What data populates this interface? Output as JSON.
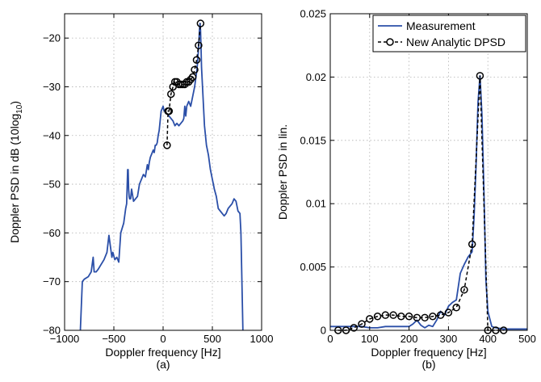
{
  "chart_data": [
    {
      "type": "line",
      "panel_label": "(a)",
      "xlabel": "Doppler frequency [Hz]",
      "ylabel_main": "Doppler PSD in dB (10log",
      "ylabel_sub": "10",
      "ylabel_tail": ")",
      "xlim": [
        -1000,
        1000
      ],
      "ylim": [
        -80,
        -15
      ],
      "x_ticks": [
        -1000,
        -500,
        0,
        500,
        1000
      ],
      "y_ticks": [
        -80,
        -70,
        -60,
        -50,
        -40,
        -30,
        -20
      ],
      "x_tick_labels": [
        "−1000",
        "−500",
        "0",
        "500",
        "1000"
      ],
      "y_tick_labels": [
        "−80",
        "−70",
        "−60",
        "−50",
        "−40",
        "−30",
        "−20"
      ],
      "grid": true,
      "series": [
        {
          "key": "measurement",
          "color": "#2b4fa8",
          "style": "solid",
          "x": [
            -840,
            -820,
            -800,
            -760,
            -730,
            -710,
            -700,
            -680,
            -660,
            -630,
            -600,
            -570,
            -550,
            -530,
            -520,
            -510,
            -490,
            -470,
            -450,
            -430,
            -400,
            -380,
            -370,
            -360,
            -355,
            -350,
            -345,
            -340,
            -330,
            -320,
            -300,
            -280,
            -260,
            -240,
            -220,
            -200,
            -180,
            -160,
            -150,
            -140,
            -130,
            -120,
            -110,
            -100,
            -90,
            -80,
            -70,
            -60,
            -50,
            -40,
            -30,
            -20,
            -10,
            0,
            10,
            20,
            30,
            40,
            60,
            80,
            100,
            120,
            140,
            160,
            180,
            200,
            210,
            220,
            230,
            240,
            260,
            280,
            300,
            320,
            340,
            350,
            360,
            365,
            370,
            375,
            380,
            385,
            390,
            400,
            420,
            440,
            460,
            480,
            500,
            520,
            540,
            560,
            580,
            600,
            620,
            640,
            660,
            680,
            700,
            720,
            740,
            760,
            780,
            790,
            800,
            810
          ],
          "y": [
            -80,
            -70,
            -69.5,
            -69,
            -68,
            -65,
            -68,
            -68,
            -67.5,
            -66.5,
            -65.5,
            -64,
            -60.5,
            -63.5,
            -65,
            -64,
            -65.5,
            -65,
            -66,
            -60,
            -58,
            -55,
            -54,
            -47,
            -47,
            -51,
            -52.5,
            -53,
            -53,
            -51,
            -53.5,
            -53,
            -52.5,
            -50,
            -49,
            -48,
            -48.5,
            -46,
            -47,
            -45.5,
            -44.5,
            -44,
            -43.5,
            -43,
            -43.5,
            -42,
            -42,
            -41.5,
            -40,
            -39,
            -37,
            -35,
            -34.5,
            -34,
            -35,
            -35,
            -35.5,
            -35.5,
            -36,
            -36.5,
            -37,
            -38,
            -37.5,
            -38,
            -37.5,
            -37,
            -36.5,
            -34,
            -36,
            -34,
            -33,
            -34,
            -32,
            -30,
            -27,
            -25,
            -22,
            -20,
            -18,
            -17,
            -18.5,
            -22,
            -26,
            -30,
            -38,
            -42,
            -44,
            -47,
            -49,
            -51,
            -52.5,
            -55,
            -55.5,
            -56,
            -56.5,
            -56,
            -55,
            -54.5,
            -54,
            -53,
            -53.5,
            -55.5,
            -56,
            -60,
            -70,
            -80
          ]
        },
        {
          "key": "analytic",
          "color": "#000000",
          "style": "dashed-circle",
          "x": [
            40,
            50,
            60,
            80,
            100,
            120,
            140,
            160,
            180,
            200,
            220,
            240,
            260,
            280,
            300,
            320,
            340,
            360,
            380
          ],
          "y": [
            -42,
            -35,
            -35,
            -31.5,
            -30,
            -29,
            -29,
            -29.5,
            -29.5,
            -29.5,
            -29.5,
            -29,
            -29,
            -28.5,
            -28,
            -26.5,
            -24.5,
            -21.5,
            -17
          ]
        }
      ]
    },
    {
      "type": "line",
      "panel_label": "(b)",
      "xlabel": "Doppler frequency [Hz]",
      "ylabel": "Doppler PSD in lin.",
      "xlim": [
        0,
        500
      ],
      "ylim": [
        0,
        0.025
      ],
      "x_ticks": [
        0,
        100,
        200,
        300,
        400,
        500
      ],
      "y_ticks": [
        0,
        0.005,
        0.01,
        0.015,
        0.02,
        0.025
      ],
      "x_tick_labels": [
        "0",
        "100",
        "200",
        "300",
        "400",
        "500"
      ],
      "y_tick_labels": [
        "0",
        "0.005",
        "0.01",
        "0.015",
        "0.02",
        "0.025"
      ],
      "grid": true,
      "legend_position": "top-right",
      "series": [
        {
          "key": "measurement",
          "name": "Measurement",
          "color": "#2b4fa8",
          "style": "solid",
          "x": [
            0,
            20,
            40,
            60,
            80,
            100,
            120,
            140,
            160,
            180,
            200,
            210,
            220,
            230,
            240,
            250,
            260,
            270,
            280,
            290,
            300,
            310,
            320,
            330,
            340,
            350,
            360,
            365,
            370,
            375,
            380,
            385,
            390,
            395,
            400,
            410,
            420,
            440,
            460,
            480,
            500
          ],
          "y": [
            0.0003,
            0.0003,
            0.0003,
            0.0003,
            0.0003,
            0.0002,
            0.0002,
            0.0003,
            0.0003,
            0.0003,
            0.0003,
            0.0005,
            0.0008,
            0.0004,
            0.0002,
            0.0004,
            0.0003,
            0.0008,
            0.0015,
            0.0012,
            0.0019,
            0.0022,
            0.0024,
            0.0045,
            0.0052,
            0.0058,
            0.0062,
            0.009,
            0.013,
            0.018,
            0.0201,
            0.017,
            0.011,
            0.004,
            0.0015,
            0.0003,
            0.0002,
            0.0001,
            0.0001,
            0.0001,
            0.0001
          ]
        },
        {
          "key": "analytic",
          "name": "New Analytic DPSD",
          "color": "#000000",
          "style": "dashed-circle",
          "x": [
            20,
            40,
            60,
            80,
            100,
            120,
            140,
            160,
            180,
            200,
            220,
            240,
            260,
            280,
            300,
            320,
            340,
            360,
            380,
            400,
            420,
            440
          ],
          "y": [
            0.0,
            0.0,
            0.0002,
            0.0005,
            0.0009,
            0.0011,
            0.0012,
            0.0012,
            0.0011,
            0.0011,
            0.001,
            0.001,
            0.0011,
            0.0012,
            0.0014,
            0.0018,
            0.0032,
            0.0068,
            0.0201,
            0.0,
            0.0,
            0.0
          ]
        }
      ]
    }
  ]
}
